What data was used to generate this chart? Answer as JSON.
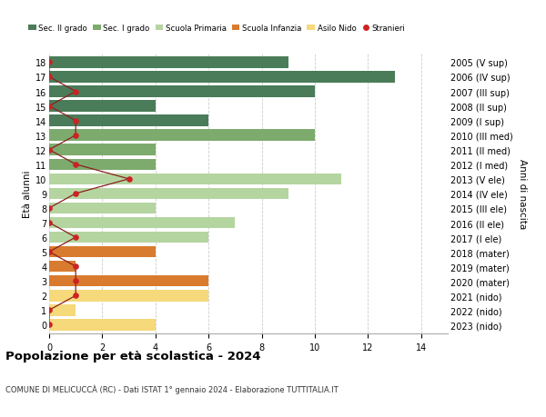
{
  "ages": [
    18,
    17,
    16,
    15,
    14,
    13,
    12,
    11,
    10,
    9,
    8,
    7,
    6,
    5,
    4,
    3,
    2,
    1,
    0
  ],
  "right_labels": [
    "2005 (V sup)",
    "2006 (IV sup)",
    "2007 (III sup)",
    "2008 (II sup)",
    "2009 (I sup)",
    "2010 (III med)",
    "2011 (II med)",
    "2012 (I med)",
    "2013 (V ele)",
    "2014 (IV ele)",
    "2015 (III ele)",
    "2016 (II ele)",
    "2017 (I ele)",
    "2018 (mater)",
    "2019 (mater)",
    "2020 (mater)",
    "2021 (nido)",
    "2022 (nido)",
    "2023 (nido)"
  ],
  "bar_values": [
    9,
    13,
    10,
    4,
    6,
    10,
    4,
    4,
    11,
    9,
    4,
    7,
    6,
    4,
    1,
    6,
    6,
    1,
    4
  ],
  "bar_colors": [
    "#4a7c59",
    "#4a7c59",
    "#4a7c59",
    "#4a7c59",
    "#4a7c59",
    "#7dab6e",
    "#7dab6e",
    "#7dab6e",
    "#b5d5a0",
    "#b5d5a0",
    "#b5d5a0",
    "#b5d5a0",
    "#b5d5a0",
    "#d97b2e",
    "#d97b2e",
    "#d97b2e",
    "#f5d97a",
    "#f5d97a",
    "#f5d97a"
  ],
  "stranieri_values": [
    0,
    0,
    1,
    0,
    1,
    1,
    0,
    1,
    3,
    1,
    0,
    0,
    1,
    0,
    1,
    1,
    1,
    0,
    0
  ],
  "title": "Popolazione per età scolastica - 2024",
  "subtitle": "COMUNE DI MELICUCCÀ (RC) - Dati ISTAT 1° gennaio 2024 - Elaborazione TUTTITALIA.IT",
  "ylabel_left": "Età alunni",
  "ylabel_right": "Anni di nascita",
  "legend_labels": [
    "Sec. II grado",
    "Sec. I grado",
    "Scuola Primaria",
    "Scuola Infanzia",
    "Asilo Nido",
    "Stranieri"
  ],
  "legend_colors": [
    "#4a7c59",
    "#7dab6e",
    "#b5d5a0",
    "#d97b2e",
    "#f5d97a",
    "#cc2222"
  ],
  "xlim": [
    0,
    15
  ],
  "xticks": [
    0,
    2,
    4,
    6,
    8,
    10,
    12,
    14
  ],
  "bg_color": "#ffffff",
  "grid_color": "#cccccc",
  "bar_height": 0.78
}
